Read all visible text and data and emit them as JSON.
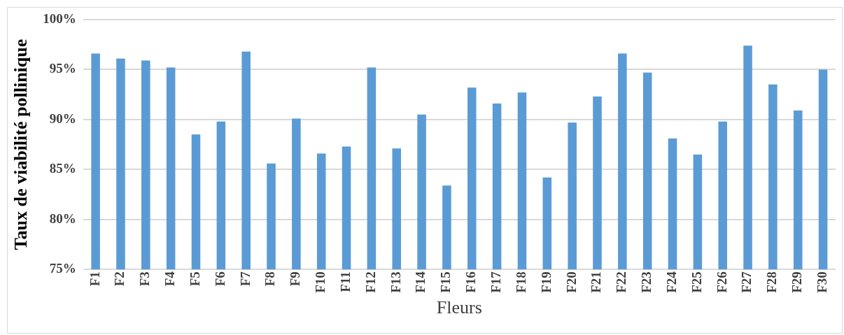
{
  "chart_data": {
    "type": "bar",
    "xlabel": "Fleurs",
    "ylabel": "Taux de viabilité pollinique",
    "categories": [
      "F1",
      "F2",
      "F3",
      "F4",
      "F5",
      "F6",
      "F7",
      "F8",
      "F9",
      "F10",
      "F11",
      "F12",
      "F13",
      "F14",
      "F15",
      "F16",
      "F17",
      "F18",
      "F19",
      "F20",
      "F21",
      "F22",
      "F23",
      "F24",
      "F25",
      "F26",
      "F27",
      "F28",
      "F29",
      "F30"
    ],
    "values": [
      96.6,
      96.1,
      95.9,
      95.2,
      88.5,
      89.8,
      96.8,
      85.6,
      90.1,
      86.6,
      87.3,
      95.2,
      87.1,
      90.5,
      83.4,
      93.2,
      91.6,
      92.7,
      84.2,
      89.7,
      92.3,
      96.6,
      94.7,
      88.1,
      86.5,
      89.8,
      97.4,
      93.5,
      90.9,
      95.0
    ],
    "color": "#5b9bd5",
    "ylim": [
      75,
      100
    ],
    "yticks": [
      {
        "value": 75,
        "label": "75%"
      },
      {
        "value": 80,
        "label": "80%"
      },
      {
        "value": 85,
        "label": "85%"
      },
      {
        "value": 90,
        "label": "90%"
      },
      {
        "value": 95,
        "label": "95%"
      },
      {
        "value": 100,
        "label": "100%"
      }
    ],
    "grid": "y"
  }
}
